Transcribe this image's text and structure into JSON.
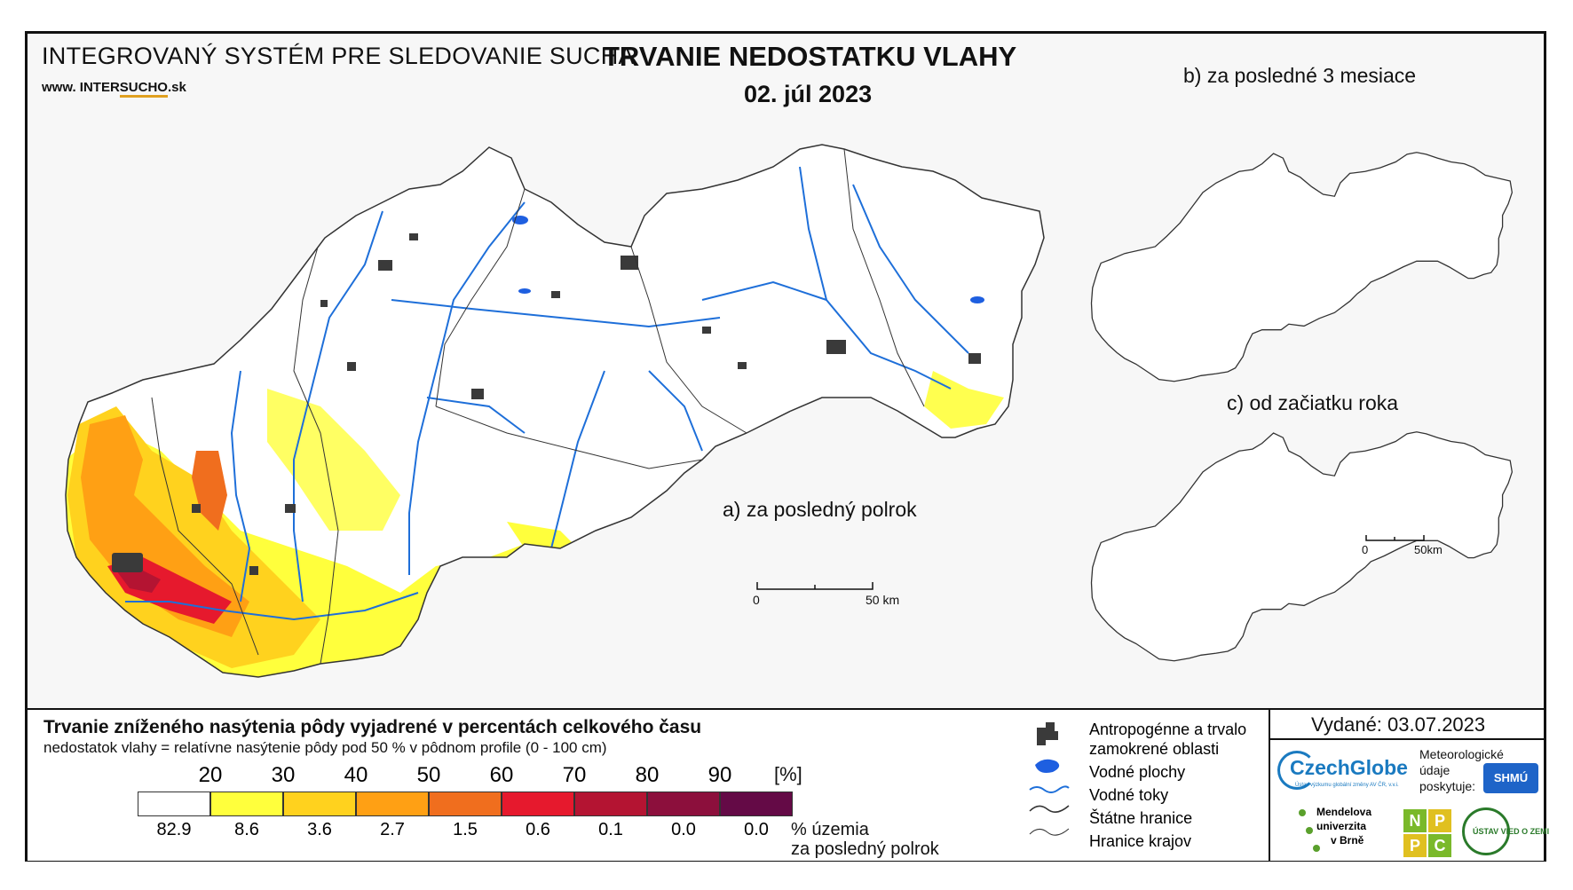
{
  "header": {
    "system_title": "INTEGROVANÝ SYSTÉM PRE SLEDOVANIE SUCHA",
    "website_prefix": "www. INTER",
    "website_brand": "SUCHO",
    "website_suffix": ".sk",
    "main_title": "TRVANIE NEDOSTATKU VLAHY",
    "date": "02. júl 2023"
  },
  "maps": {
    "main_label": "a) za posledný polrok",
    "b_label": "b) za posledné 3 mesiace",
    "c_label": "c) od začiatku roka",
    "main_scale": {
      "zero": "0",
      "end": "50 km"
    },
    "small_scale": {
      "zero": "0",
      "end": "50km"
    }
  },
  "legend": {
    "title": "Trvanie zníženého nasýtenia pôdy vyjadrené v percentách celkového času",
    "subtitle": "nedostatok vlahy = relatívne nasýtenie pôdy pod 50 % v pôdnom profile (0 - 100 cm)",
    "unit": "[%]",
    "thresholds": [
      "20",
      "30",
      "40",
      "50",
      "60",
      "70",
      "80",
      "90"
    ],
    "classes": [
      {
        "color": "#ffffff",
        "pct": "82.9"
      },
      {
        "color": "#ffff3c",
        "pct": "8.6"
      },
      {
        "color": "#ffd21e",
        "pct": "3.6"
      },
      {
        "color": "#ffa014",
        "pct": "2.7"
      },
      {
        "color": "#f06e1e",
        "pct": "1.5"
      },
      {
        "color": "#e6192d",
        "pct": "0.6"
      },
      {
        "color": "#b41432",
        "pct": "0.1"
      },
      {
        "color": "#8c0f3c",
        "pct": "0.0"
      },
      {
        "color": "#640a46",
        "pct": "0.0"
      }
    ],
    "pct_caption_1": "% územia",
    "pct_caption_2": "za posledný polrok",
    "symbols": [
      {
        "icon": "urban-area-icon",
        "label": "Antropogénne a trvalo"
      },
      {
        "icon": "",
        "label": "zamokrené oblasti"
      },
      {
        "icon": "water-body-icon",
        "label": "Vodné plochy"
      },
      {
        "icon": "river-icon",
        "label": "Vodné toky"
      },
      {
        "icon": "state-border-icon",
        "label": "Štátne hranice"
      },
      {
        "icon": "region-border-icon",
        "label": "Hranice krajov"
      }
    ]
  },
  "issued": "Vydané: 03.07.2023",
  "credits": {
    "czechglobe": "CzechGlobe",
    "czechglobe_sub": "Ústav výzkumu globální změny AV ČR, v.v.i.",
    "meteo_1": "Meteorologické",
    "meteo_2": "údaje",
    "meteo_3": "poskytuje:",
    "shmu": "SHMÚ",
    "mendel_1": "Mendelova",
    "mendel_2": "univerzita",
    "mendel_3": "v Brně",
    "nppc": [
      "N",
      "P",
      "P",
      "C"
    ],
    "uvz": "ÚSTAV VIED O ZEMI"
  },
  "colors": {
    "river": "#1e6fd9",
    "urban": "#3a3a3a",
    "border": "#333333",
    "shmu_blue": "#1e64c8",
    "czechglobe_blue": "#1a7ac0",
    "nppc_green": "#7ab92a",
    "nppc_yellow": "#e0c020"
  }
}
